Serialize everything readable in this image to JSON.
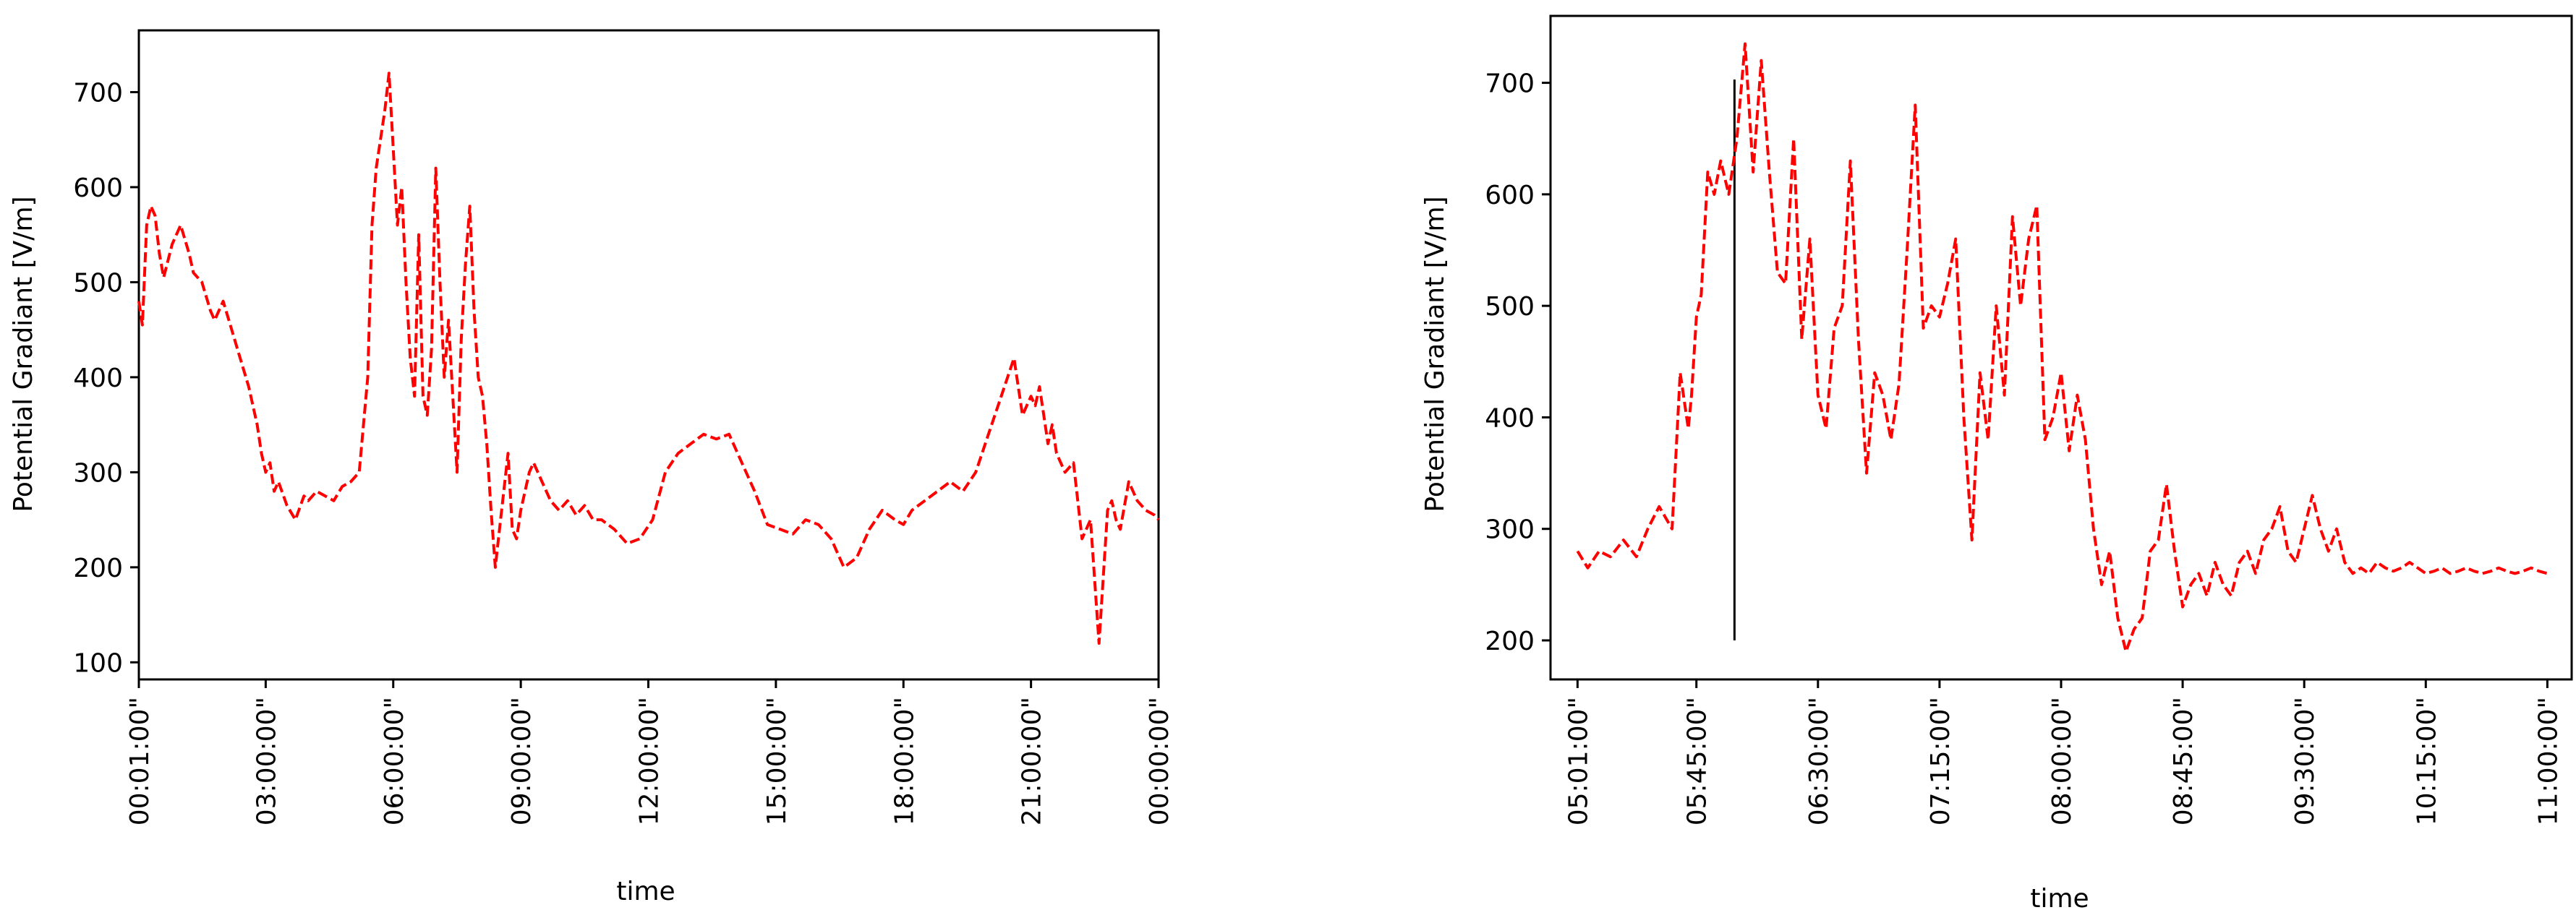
{
  "colors": {
    "series": "#ff0000",
    "axis": "#000000",
    "marker": "#000000"
  },
  "chart_data": [
    {
      "type": "line",
      "title": "",
      "xlabel": "time",
      "ylabel": "Potential Gradiant [V/m]",
      "x_unit": "hours",
      "xlim": [
        0.0167,
        24
      ],
      "ylim": [
        82,
        765
      ],
      "xticks": [
        0.0167,
        3,
        6,
        9,
        12,
        15,
        18,
        21,
        24
      ],
      "xtick_labels": [
        "00:01:00\"",
        "03:00:00\"",
        "06:00:00\"",
        "09:00:00\"",
        "12:00:00\"",
        "15:00:00\"",
        "18:00:00\"",
        "21:00:00\"",
        "00:00:00\""
      ],
      "yticks": [
        100,
        200,
        300,
        400,
        500,
        600,
        700
      ],
      "ytick_labels": [
        "100",
        "200",
        "300",
        "400",
        "500",
        "600",
        "700"
      ],
      "grid": false,
      "series": [
        {
          "line_style": "dashed",
          "color": "#ff0000",
          "x": [
            0.0167,
            0.1,
            0.2,
            0.3,
            0.4,
            0.5,
            0.6,
            0.8,
            1.0,
            1.2,
            1.3,
            1.5,
            1.7,
            1.8,
            2.0,
            2.2,
            2.4,
            2.6,
            2.8,
            2.9,
            3.0,
            3.1,
            3.2,
            3.3,
            3.5,
            3.7,
            3.9,
            4.0,
            4.2,
            4.4,
            4.6,
            4.8,
            5.0,
            5.2,
            5.4,
            5.5,
            5.6,
            5.8,
            5.9,
            6.0,
            6.1,
            6.2,
            6.3,
            6.4,
            6.5,
            6.6,
            6.7,
            6.8,
            6.9,
            7.0,
            7.1,
            7.2,
            7.3,
            7.4,
            7.5,
            7.6,
            7.7,
            7.8,
            7.9,
            8.0,
            8.1,
            8.2,
            8.3,
            8.4,
            8.5,
            8.6,
            8.7,
            8.8,
            8.9,
            9.0,
            9.1,
            9.2,
            9.3,
            9.5,
            9.7,
            9.9,
            10.1,
            10.3,
            10.5,
            10.7,
            10.9,
            11.2,
            11.5,
            11.8,
            12.1,
            12.4,
            12.7,
            13.0,
            13.3,
            13.6,
            13.9,
            14.2,
            14.5,
            14.8,
            15.1,
            15.4,
            15.7,
            16.0,
            16.3,
            16.6,
            16.9,
            17.2,
            17.5,
            17.8,
            18.0,
            18.2,
            18.5,
            18.8,
            19.1,
            19.4,
            19.7,
            20.0,
            20.3,
            20.6,
            20.8,
            21.0,
            21.1,
            21.2,
            21.3,
            21.4,
            21.5,
            21.6,
            21.8,
            22.0,
            22.2,
            22.4,
            22.6,
            22.8,
            22.9,
            23.0,
            23.1,
            23.3,
            23.5,
            23.7,
            23.9,
            24.0
          ],
          "y": [
            480,
            455,
            560,
            580,
            570,
            530,
            505,
            540,
            560,
            530,
            510,
            500,
            470,
            460,
            480,
            450,
            420,
            390,
            350,
            320,
            300,
            310,
            280,
            290,
            265,
            250,
            275,
            270,
            280,
            275,
            270,
            285,
            290,
            300,
            400,
            560,
            620,
            680,
            720,
            640,
            560,
            600,
            500,
            420,
            380,
            550,
            380,
            360,
            430,
            620,
            500,
            400,
            460,
            380,
            300,
            440,
            520,
            580,
            470,
            400,
            380,
            330,
            260,
            200,
            240,
            280,
            320,
            240,
            230,
            260,
            280,
            300,
            310,
            290,
            270,
            260,
            270,
            255,
            265,
            250,
            250,
            240,
            225,
            230,
            250,
            300,
            320,
            330,
            340,
            335,
            340,
            310,
            280,
            245,
            240,
            235,
            250,
            245,
            230,
            200,
            210,
            240,
            260,
            250,
            245,
            260,
            270,
            280,
            290,
            280,
            300,
            340,
            380,
            420,
            360,
            380,
            370,
            390,
            360,
            330,
            350,
            320,
            300,
            310,
            230,
            250,
            120,
            260,
            270,
            250,
            240,
            290,
            270,
            260,
            255,
            250
          ]
        }
      ]
    },
    {
      "type": "line",
      "title": "",
      "xlabel": "time",
      "ylabel": "Potential Gradiant [V/m]",
      "x_unit": "hours",
      "xlim": [
        4.85,
        11.15
      ],
      "ylim": [
        165,
        760
      ],
      "xticks": [
        5.0167,
        5.75,
        6.5,
        7.25,
        8.0,
        8.75,
        9.5,
        10.25,
        11.0
      ],
      "xtick_labels": [
        "05:01:00\"",
        "05:45:00\"",
        "06:30:00\"",
        "07:15:00\"",
        "08:00:00\"",
        "08:45:00\"",
        "09:30:00\"",
        "10:15:00\"",
        "11:00:00\""
      ],
      "yticks": [
        200,
        300,
        400,
        500,
        600,
        700
      ],
      "ytick_labels": [
        "200",
        "300",
        "400",
        "500",
        "600",
        "700"
      ],
      "grid": false,
      "marker_line": {
        "x": 5.985,
        "y_start": 200,
        "y_end": 703
      },
      "series": [
        {
          "line_style": "dashed",
          "color": "#ff0000",
          "x": [
            5.0167,
            5.08,
            5.15,
            5.22,
            5.3,
            5.38,
            5.45,
            5.52,
            5.6,
            5.65,
            5.7,
            5.72,
            5.75,
            5.78,
            5.82,
            5.86,
            5.9,
            5.95,
            6.0,
            6.05,
            6.1,
            6.15,
            6.2,
            6.25,
            6.3,
            6.35,
            6.4,
            6.45,
            6.5,
            6.55,
            6.6,
            6.65,
            6.7,
            6.75,
            6.8,
            6.85,
            6.9,
            6.95,
            7.0,
            7.05,
            7.1,
            7.15,
            7.2,
            7.25,
            7.3,
            7.35,
            7.4,
            7.45,
            7.5,
            7.55,
            7.6,
            7.65,
            7.7,
            7.75,
            7.8,
            7.85,
            7.9,
            7.95,
            8.0,
            8.05,
            8.1,
            8.15,
            8.2,
            8.25,
            8.3,
            8.35,
            8.4,
            8.45,
            8.5,
            8.55,
            8.6,
            8.65,
            8.7,
            8.75,
            8.8,
            8.85,
            8.9,
            8.95,
            9.0,
            9.05,
            9.1,
            9.15,
            9.2,
            9.25,
            9.3,
            9.35,
            9.4,
            9.45,
            9.5,
            9.55,
            9.6,
            9.65,
            9.7,
            9.75,
            9.8,
            9.85,
            9.9,
            9.95,
            10.0,
            10.05,
            10.1,
            10.15,
            10.2,
            10.25,
            10.3,
            10.35,
            10.4,
            10.45,
            10.5,
            10.55,
            10.6,
            10.65,
            10.7,
            10.75,
            10.8,
            10.85,
            10.9,
            10.95,
            11.0
          ],
          "y": [
            280,
            265,
            280,
            275,
            290,
            275,
            300,
            320,
            300,
            440,
            390,
            420,
            490,
            510,
            620,
            600,
            630,
            600,
            650,
            735,
            620,
            720,
            620,
            530,
            520,
            650,
            470,
            560,
            420,
            390,
            480,
            500,
            630,
            470,
            350,
            440,
            420,
            380,
            430,
            550,
            680,
            480,
            500,
            490,
            520,
            560,
            400,
            290,
            440,
            380,
            500,
            420,
            580,
            500,
            560,
            590,
            380,
            400,
            440,
            370,
            420,
            380,
            300,
            250,
            280,
            220,
            190,
            210,
            220,
            280,
            290,
            340,
            280,
            230,
            250,
            260,
            240,
            270,
            250,
            240,
            270,
            280,
            260,
            290,
            300,
            320,
            280,
            270,
            300,
            330,
            300,
            280,
            300,
            270,
            260,
            265,
            260,
            270,
            265,
            262,
            265,
            270,
            265,
            260,
            262,
            265,
            260,
            262,
            265,
            262,
            260,
            262,
            265,
            262,
            260,
            262,
            265,
            262,
            260
          ]
        }
      ]
    }
  ]
}
